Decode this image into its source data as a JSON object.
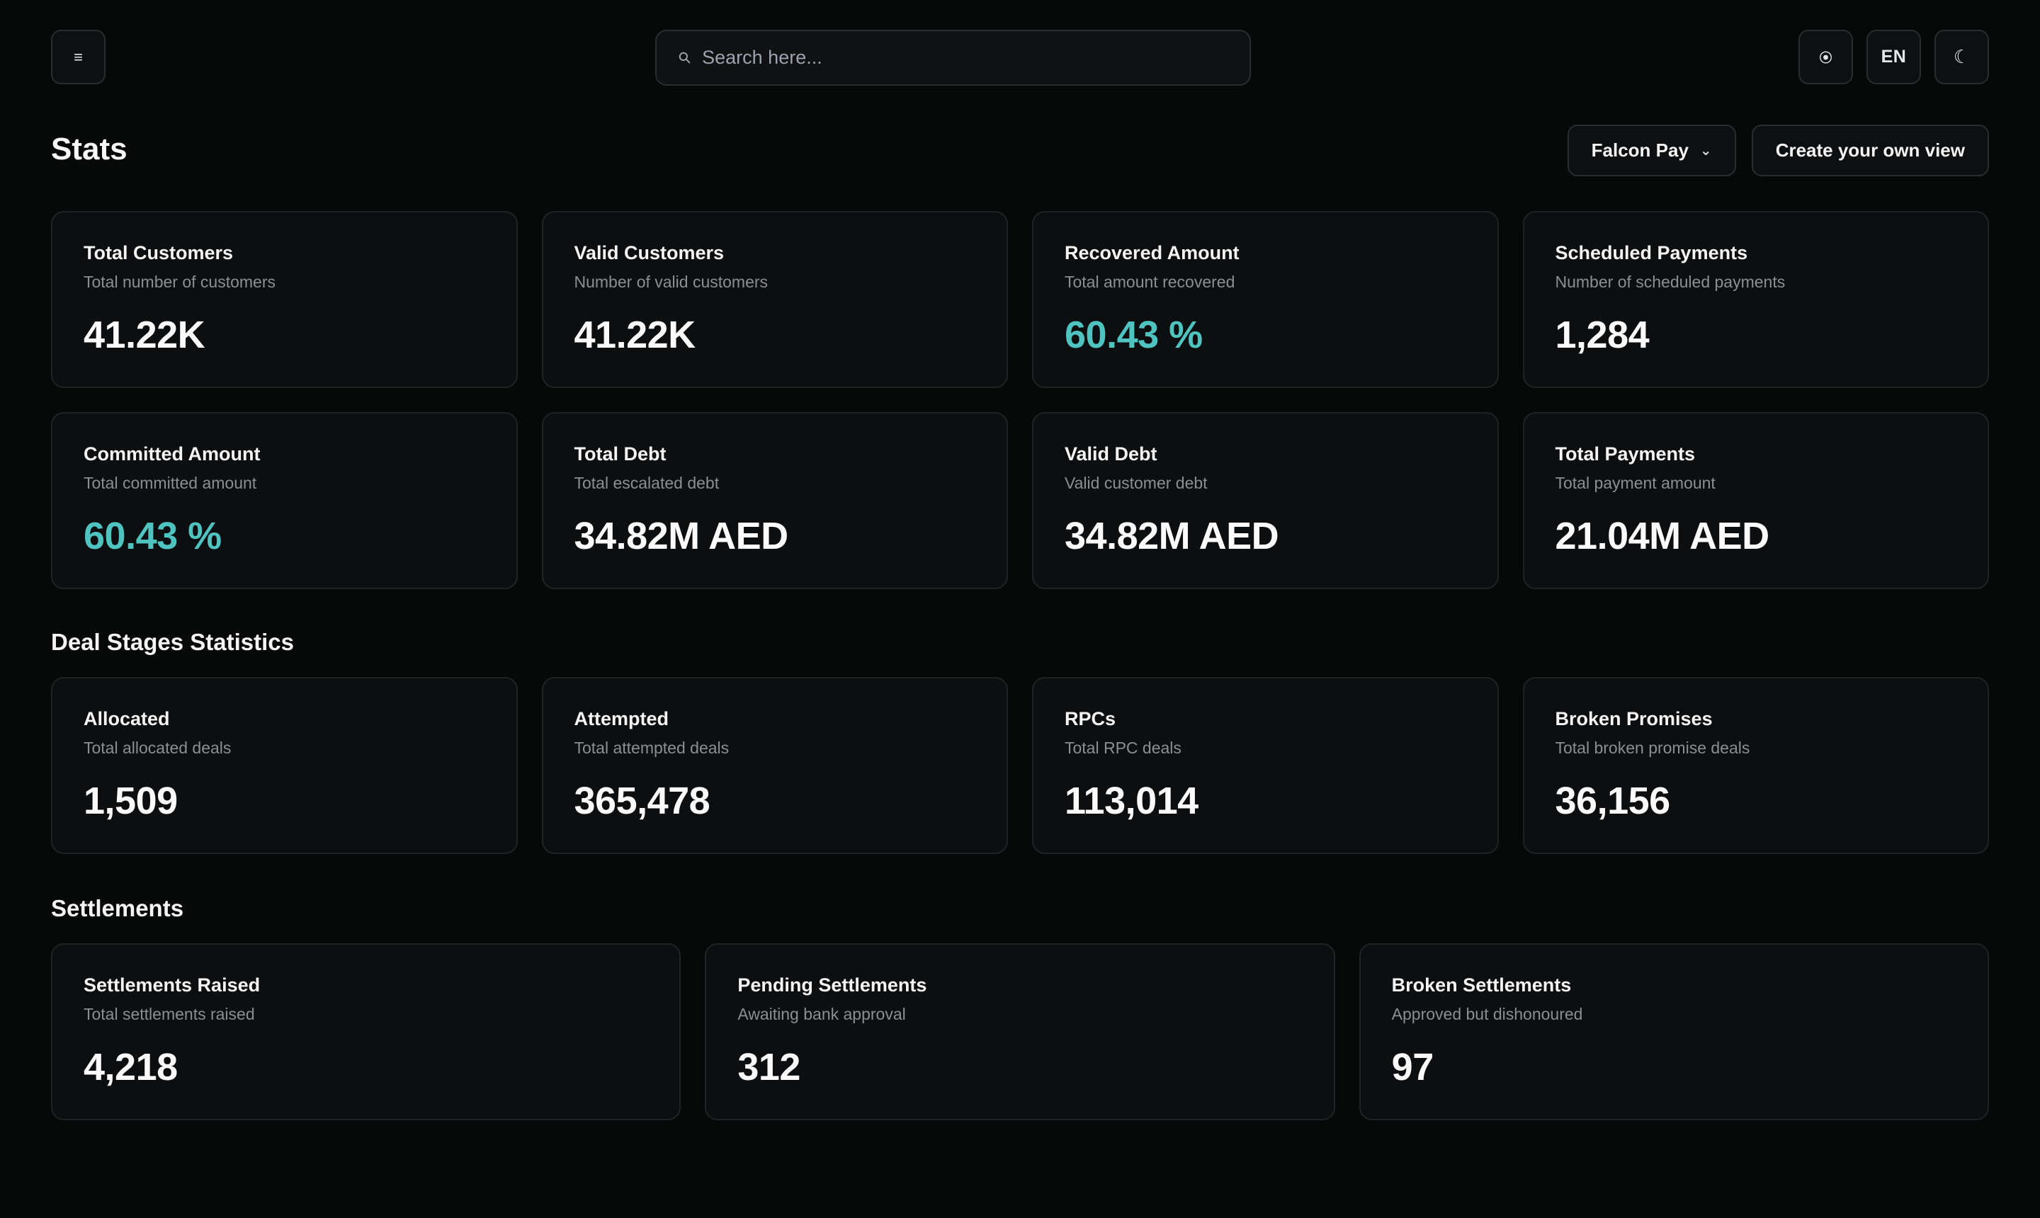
{
  "topbar": {
    "menu_icon": "menu-icon",
    "search_placeholder": "Search here...",
    "status_icon": "status-icon",
    "language": "EN",
    "theme_icon": "moon-icon"
  },
  "page": {
    "title": "Stats",
    "view_select_label": "Falcon Pay",
    "create_view_label": "Create your own view"
  },
  "colors": {
    "accent": "#4fc3c0",
    "background": "#070808",
    "card": "#0c0e0f"
  },
  "stats": [
    {
      "title": "Total Customers",
      "subtitle": "Total number of customers",
      "value": "41.22K"
    },
    {
      "title": "Valid Customers",
      "subtitle": "Number of valid customers",
      "value": "41.22K"
    },
    {
      "title": "Recovered Amount",
      "subtitle": "Total amount recovered",
      "value": "60.43 %"
    },
    {
      "title": "Scheduled Payments",
      "subtitle": "Number of scheduled payments",
      "value": "1,284"
    },
    {
      "title": "Committed Amount",
      "subtitle": "Total committed amount",
      "value": "60.43 %"
    },
    {
      "title": "Total Debt",
      "subtitle": "Total escalated debt",
      "value": "34.82M AED"
    },
    {
      "title": "Valid Debt",
      "subtitle": "Valid customer debt",
      "value": "34.82M AED"
    },
    {
      "title": "Total Payments",
      "subtitle": "Total payment amount",
      "value": "21.04M AED"
    }
  ],
  "deal_stages": {
    "title": "Deal Stages Statistics",
    "items": [
      {
        "title": "Allocated",
        "subtitle": "Total allocated deals",
        "value": "1,509"
      },
      {
        "title": "Attempted",
        "subtitle": "Total attempted deals",
        "value": "365,478"
      },
      {
        "title": "RPCs",
        "subtitle": "Total RPC deals",
        "value": "113,014"
      },
      {
        "title": "Broken Promises",
        "subtitle": "Total broken promise deals",
        "value": "36,156"
      }
    ]
  },
  "settlements": {
    "title": "Settlements",
    "items": [
      {
        "title": "Settlements Raised",
        "subtitle": "Total settlements raised",
        "value": "4,218"
      },
      {
        "title": "Pending Settlements",
        "subtitle": "Awaiting bank approval",
        "value": "312"
      },
      {
        "title": "Broken Settlements",
        "subtitle": "Approved but dishonoured",
        "value": "97"
      }
    ]
  }
}
